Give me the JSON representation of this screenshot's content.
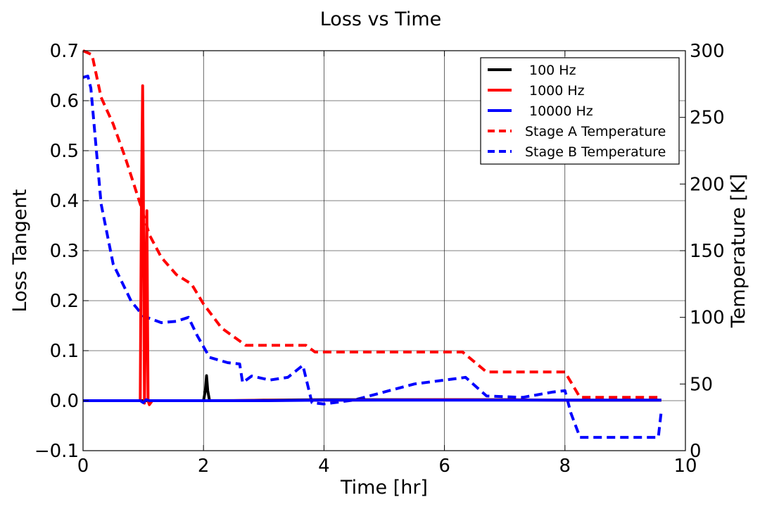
{
  "chart_data": {
    "type": "line",
    "title": "Loss vs Time",
    "xlabel": "Time [hr]",
    "ylabel": "Loss Tangent",
    "y2label": "Temperature [K]",
    "xlim": [
      0,
      10
    ],
    "ylim": [
      -0.1,
      0.7
    ],
    "y2lim": [
      0,
      300
    ],
    "xticks": [
      "0",
      "2",
      "4",
      "6",
      "8",
      "10"
    ],
    "yticks": [
      "−0.1",
      "0.0",
      "0.1",
      "0.2",
      "0.3",
      "0.4",
      "0.5",
      "0.6",
      "0.7"
    ],
    "y2ticks": [
      "0",
      "50",
      "100",
      "150",
      "200",
      "250",
      "300"
    ],
    "grid": true,
    "legend_position": "top-right",
    "series": [
      {
        "name": "100 Hz",
        "axis": "left",
        "color": "#000000",
        "style": "solid",
        "x": [
          0,
          1.9,
          2.0,
          2.03,
          2.05,
          2.07,
          2.1,
          2.5,
          3.0,
          4.0,
          5.0,
          6.0,
          7.0,
          8.0,
          9.0,
          9.6
        ],
        "y": [
          0.0,
          0.0,
          0.0,
          0.02,
          0.05,
          0.02,
          0.0,
          0.0,
          0.001,
          0.002,
          0.002,
          0.002,
          0.002,
          0.001,
          0.001,
          0.001
        ]
      },
      {
        "name": "1000 Hz",
        "axis": "left",
        "color": "#ff0000",
        "style": "solid",
        "x": [
          0,
          0.9,
          0.95,
          0.97,
          0.99,
          1.0,
          1.02,
          1.04,
          1.06,
          1.08,
          1.1,
          1.15,
          2.0,
          4.0,
          6.0,
          8.0,
          9.6
        ],
        "y": [
          0.0,
          0.0,
          0.0,
          0.4,
          0.63,
          0.45,
          -0.005,
          0.2,
          0.38,
          0.0,
          -0.008,
          0.0,
          0.0,
          0.001,
          0.002,
          0.001,
          0.001
        ]
      },
      {
        "name": "10000 Hz",
        "axis": "left",
        "color": "#0000ff",
        "style": "solid",
        "x": [
          0,
          0.95,
          1.0,
          1.05,
          1.1,
          2.0,
          3.0,
          4.0,
          5.0,
          6.0,
          7.0,
          8.0,
          9.0,
          9.6
        ],
        "y": [
          0.0,
          0.0,
          -0.004,
          0.002,
          0.0,
          0.0,
          0.0,
          0.001,
          0.001,
          0.001,
          0.001,
          0.001,
          0.001,
          0.001
        ]
      },
      {
        "name": "Stage A Temperature",
        "axis": "right",
        "color": "#ff0000",
        "style": "dashed",
        "x": [
          0,
          0.15,
          0.3,
          0.5,
          0.7,
          0.95,
          1.1,
          1.3,
          1.55,
          1.8,
          2.0,
          2.3,
          2.7,
          3.7,
          3.85,
          6.3,
          6.7,
          8.0,
          8.25,
          9.6
        ],
        "y": [
          300,
          297,
          265,
          245,
          220,
          185,
          162,
          145,
          132,
          125,
          110,
          92,
          79,
          79,
          74,
          74,
          59,
          59,
          40,
          40
        ]
      },
      {
        "name": "Stage B Temperature",
        "axis": "right",
        "color": "#0000ff",
        "style": "dashed",
        "x": [
          0,
          0.08,
          0.13,
          0.3,
          0.5,
          0.8,
          1.0,
          1.3,
          1.55,
          1.75,
          1.9,
          2.1,
          2.4,
          2.6,
          2.65,
          2.8,
          3.1,
          3.4,
          3.65,
          3.8,
          4.0,
          4.5,
          5.5,
          6.35,
          6.7,
          7.3,
          7.8,
          8.0,
          8.1,
          8.25,
          8.5,
          9.55,
          9.6
        ],
        "y": [
          280,
          281,
          272,
          185,
          140,
          112,
          101,
          96,
          97,
          100,
          86,
          70,
          66,
          65,
          51,
          56,
          53,
          55,
          64,
          36,
          35,
          38,
          50,
          55,
          41,
          40,
          44,
          45,
          28,
          10,
          10,
          10,
          30
        ]
      }
    ]
  }
}
